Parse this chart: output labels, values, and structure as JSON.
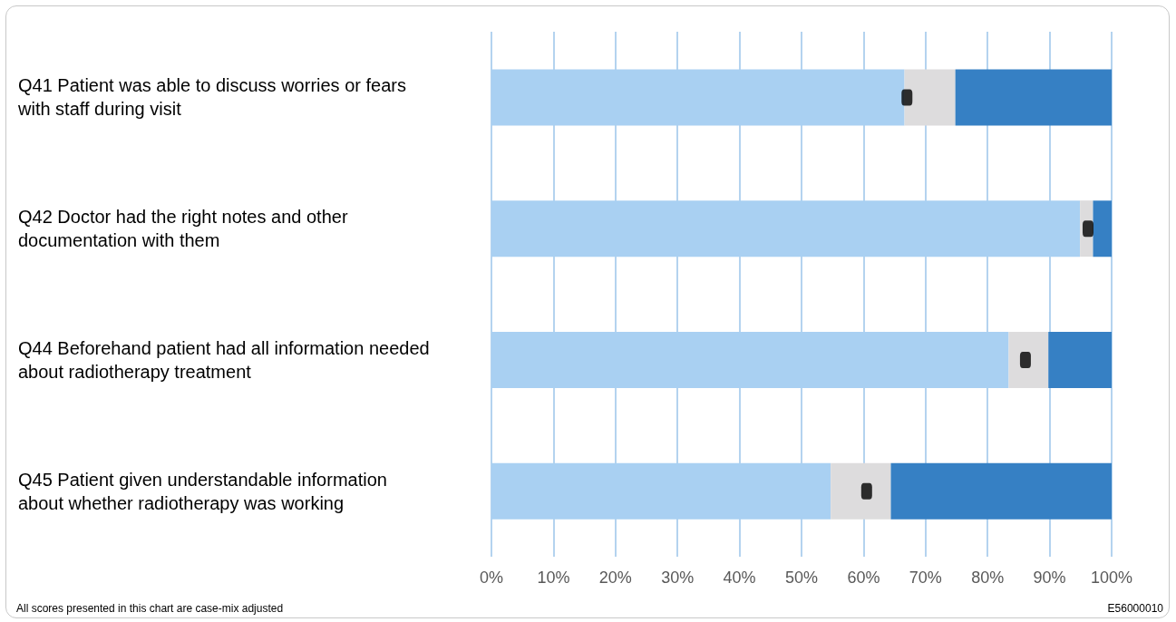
{
  "chart_data": {
    "type": "bar",
    "orientation": "horizontal",
    "stacked": true,
    "categories": [
      "Q41 Patient was able to discuss worries or fears with staff during visit",
      "Q42 Doctor had the right notes and other documentation with them",
      "Q44 Beforehand patient had all information needed about radiotherapy treatment",
      "Q45 Patient given understandable information about whether radiotherapy was working"
    ],
    "series": [
      {
        "color": "#a9d0f2",
        "values": [
          66.6,
          94.9,
          83.4,
          54.7
        ]
      },
      {
        "color": "#dddcdd",
        "values": [
          8.2,
          2.1,
          6.4,
          9.7
        ]
      },
      {
        "color": "#3680c4",
        "values": [
          25.2,
          3.0,
          10.2,
          35.6
        ]
      },
      {
        "type": "scatter",
        "color": "#000000",
        "marker": "square",
        "values": [
          67.0,
          96.2,
          86.1,
          60.5
        ]
      }
    ],
    "xlim": [
      0,
      100
    ],
    "xticks": [
      {
        "value": 0,
        "label": "0%"
      },
      {
        "value": 10,
        "label": "10%"
      },
      {
        "value": 20,
        "label": "20%"
      },
      {
        "value": 30,
        "label": "30%"
      },
      {
        "value": 40,
        "label": "40%"
      },
      {
        "value": 50,
        "label": "50%"
      },
      {
        "value": 60,
        "label": "60%"
      },
      {
        "value": 70,
        "label": "70%"
      },
      {
        "value": 80,
        "label": "80%"
      },
      {
        "value": 90,
        "label": "90%"
      },
      {
        "value": 100,
        "label": "100%"
      }
    ],
    "grid": "x",
    "annotations": [
      "All scores presented in this chart are case-mix adjusted",
      "E56000010"
    ]
  }
}
